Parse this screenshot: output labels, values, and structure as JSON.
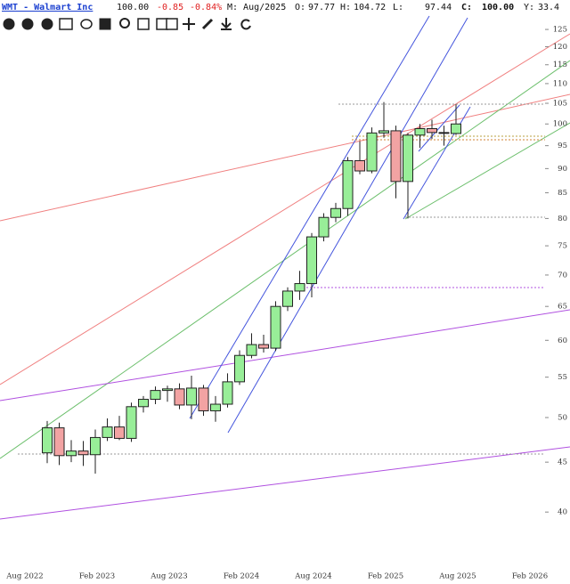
{
  "header": {
    "symbol": "WMT - Walmart Inc",
    "last": "100.00",
    "change": "-0.85",
    "change_pct": "-0.84%",
    "period": "M: Aug/2025",
    "open_label": "O:",
    "open": "97.77",
    "high_label": "H:",
    "high": "104.72",
    "low_label": "L:",
    "low": "97.44",
    "close_label": "C:",
    "close": "100.00",
    "yield_label": "Y:",
    "yield": "33.4"
  },
  "chart_data": {
    "type": "candlestick",
    "categories": [
      "Aug 2022",
      null,
      null,
      null,
      null,
      null,
      "Feb 2023",
      null,
      null,
      null,
      null,
      null,
      "Aug 2023",
      null,
      null,
      null,
      null,
      null,
      "Feb 2024",
      null,
      null,
      null,
      null,
      null,
      "Aug 2024",
      null,
      null,
      null,
      null,
      null,
      "Feb 2025",
      null,
      null,
      null,
      null,
      null,
      "Aug 2025",
      null,
      null,
      null,
      null,
      null,
      "Feb 2026"
    ],
    "open": [
      null,
      null,
      46.0,
      48.8,
      45.7,
      46.2,
      45.8,
      47.7,
      48.9,
      47.6,
      51.3,
      52.2,
      53.3,
      53.5,
      51.5,
      53.6,
      50.8,
      51.6,
      54.4,
      57.9,
      59.4,
      58.9,
      65.0,
      67.4,
      68.6,
      76.6,
      80.2,
      81.9,
      91.7,
      89.5,
      97.9,
      98.4,
      87.3,
      97.4,
      98.9,
      98.0,
      97.77,
      null,
      null,
      null,
      null,
      null,
      null
    ],
    "high": [
      null,
      null,
      49.6,
      49.4,
      47.4,
      47.3,
      48.6,
      49.9,
      50.2,
      51.8,
      52.6,
      53.8,
      53.9,
      54.2,
      55.2,
      54.0,
      52.6,
      55.5,
      58.6,
      61.0,
      60.8,
      65.8,
      68.0,
      70.7,
      77.3,
      81.0,
      83.0,
      92.5,
      96.0,
      99.2,
      105.3,
      99.6,
      97.9,
      100.0,
      101.0,
      99.6,
      104.72,
      null,
      null,
      null,
      null,
      null,
      null
    ],
    "low": [
      null,
      null,
      44.9,
      44.7,
      45.0,
      44.6,
      43.8,
      47.3,
      47.4,
      47.2,
      50.6,
      51.6,
      51.9,
      51.0,
      49.8,
      50.2,
      49.5,
      51.2,
      54.0,
      57.5,
      58.3,
      58.5,
      64.3,
      66.0,
      66.4,
      75.8,
      79.3,
      80.5,
      88.8,
      89.0,
      96.8,
      83.9,
      80.0,
      94.5,
      96.5,
      95.0,
      97.44,
      null,
      null,
      null,
      null,
      null,
      null
    ],
    "close": [
      null,
      null,
      48.8,
      45.7,
      46.2,
      45.8,
      47.7,
      48.9,
      47.6,
      51.3,
      52.2,
      53.3,
      53.5,
      51.5,
      53.6,
      50.8,
      51.6,
      54.4,
      57.9,
      59.4,
      58.9,
      65.0,
      67.4,
      68.6,
      76.6,
      80.2,
      81.9,
      91.7,
      89.5,
      97.9,
      98.4,
      87.3,
      97.4,
      98.9,
      98.0,
      97.8,
      100,
      null,
      null,
      null,
      null,
      null,
      null
    ],
    "up_color": "#98ee98",
    "down_color": "#f2a3a3",
    "log_scale": true,
    "ylim": [
      35.2,
      134
    ],
    "yticks": [
      40,
      45,
      50,
      55,
      60,
      65,
      70,
      75,
      80,
      85,
      90,
      95,
      100,
      105,
      110,
      115,
      120,
      125
    ]
  }
}
